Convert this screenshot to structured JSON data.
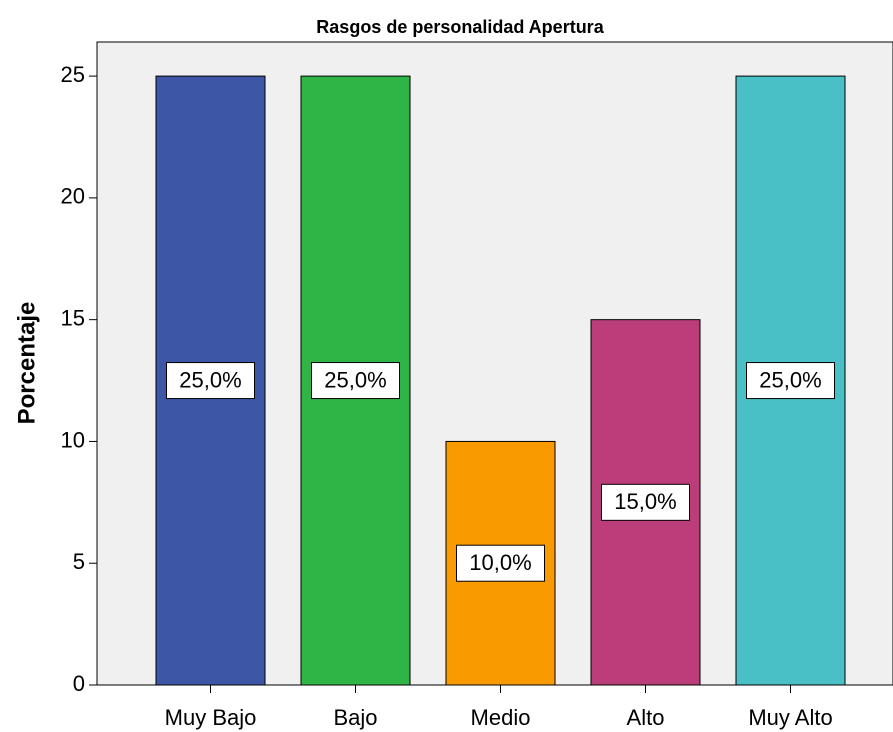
{
  "chart_data": {
    "type": "bar",
    "title": "Rasgos de personalidad Apertura",
    "ylabel": "Porcentaje",
    "categories": [
      "Muy Bajo",
      "Bajo",
      "Medio",
      "Alto",
      "Muy Alto"
    ],
    "values": [
      25,
      25,
      10,
      15,
      25
    ],
    "value_labels": [
      "25,0%",
      "25,0%",
      "10,0%",
      "15,0%",
      "25,0%"
    ],
    "colors": [
      "#3d56a6",
      "#2fb545",
      "#f99a00",
      "#bb3e7a",
      "#48c0c5"
    ],
    "ylim": [
      0,
      26.4
    ],
    "yticks": [
      0,
      5,
      10,
      15,
      20,
      25
    ],
    "grid": false
  }
}
